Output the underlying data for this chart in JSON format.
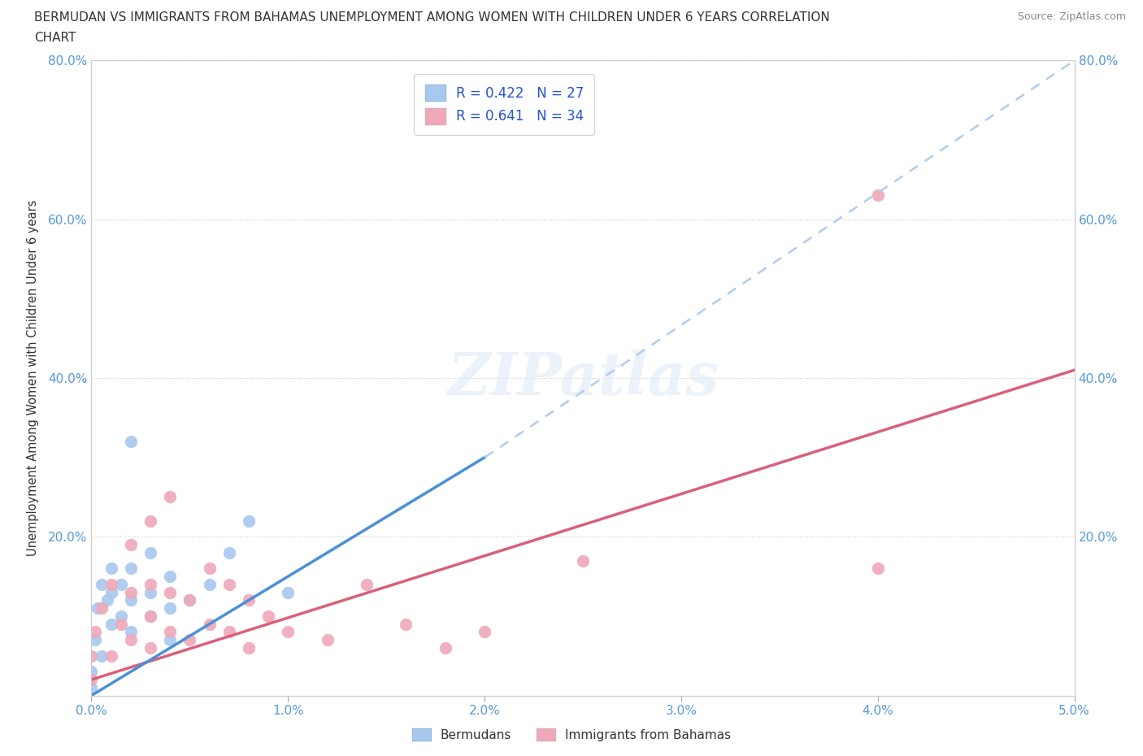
{
  "title_line1": "BERMUDAN VS IMMIGRANTS FROM BAHAMAS UNEMPLOYMENT AMONG WOMEN WITH CHILDREN UNDER 6 YEARS CORRELATION",
  "title_line2": "CHART",
  "source": "Source: ZipAtlas.com",
  "ylabel": "Unemployment Among Women with Children Under 6 years",
  "xlim": [
    0.0,
    0.05
  ],
  "ylim": [
    0.0,
    0.8
  ],
  "xticks": [
    0.0,
    0.01,
    0.02,
    0.03,
    0.04,
    0.05
  ],
  "yticks": [
    0.0,
    0.2,
    0.4,
    0.6,
    0.8
  ],
  "xticklabels": [
    "0.0%",
    "1.0%",
    "2.0%",
    "3.0%",
    "4.0%",
    "5.0%"
  ],
  "yticklabels": [
    "",
    "20.0%",
    "40.0%",
    "60.0%",
    "80.0%"
  ],
  "legend1_R": "0.422",
  "legend1_N": "27",
  "legend2_R": "0.641",
  "legend2_N": "34",
  "bermudans_color": "#a8c8f0",
  "bahamas_color": "#f0a8b8",
  "trendline_blue": "#4a90d9",
  "trendline_pink": "#d9607a",
  "dashed_color": "#b0ccee",
  "watermark_text": "ZIPatlas",
  "blue_line_x": [
    0.0,
    0.02
  ],
  "blue_line_y": [
    0.0,
    0.3
  ],
  "dash_line_x": [
    0.02,
    0.05
  ],
  "dash_line_y": [
    0.3,
    0.8
  ],
  "pink_line_x": [
    0.0,
    0.05
  ],
  "pink_line_y": [
    0.02,
    0.41
  ],
  "bermudans_x": [
    0.0,
    0.0002,
    0.0003,
    0.0005,
    0.0005,
    0.0008,
    0.001,
    0.001,
    0.001,
    0.0015,
    0.0015,
    0.002,
    0.002,
    0.002,
    0.002,
    0.003,
    0.003,
    0.003,
    0.004,
    0.004,
    0.004,
    0.005,
    0.006,
    0.007,
    0.008,
    0.01,
    0.0
  ],
  "bermudans_y": [
    0.03,
    0.07,
    0.11,
    0.14,
    0.05,
    0.12,
    0.09,
    0.13,
    0.16,
    0.1,
    0.14,
    0.08,
    0.12,
    0.16,
    0.32,
    0.1,
    0.13,
    0.18,
    0.07,
    0.11,
    0.15,
    0.12,
    0.14,
    0.18,
    0.22,
    0.13,
    0.01
  ],
  "bahamas_x": [
    0.0,
    0.0,
    0.0002,
    0.0005,
    0.001,
    0.001,
    0.0015,
    0.002,
    0.002,
    0.002,
    0.003,
    0.003,
    0.003,
    0.003,
    0.004,
    0.004,
    0.004,
    0.005,
    0.005,
    0.006,
    0.006,
    0.007,
    0.007,
    0.008,
    0.008,
    0.009,
    0.01,
    0.012,
    0.014,
    0.016,
    0.018,
    0.02,
    0.025,
    0.04
  ],
  "bahamas_y": [
    0.02,
    0.05,
    0.08,
    0.11,
    0.05,
    0.14,
    0.09,
    0.07,
    0.13,
    0.19,
    0.06,
    0.1,
    0.14,
    0.22,
    0.08,
    0.13,
    0.25,
    0.07,
    0.12,
    0.09,
    0.16,
    0.08,
    0.14,
    0.06,
    0.12,
    0.1,
    0.08,
    0.07,
    0.14,
    0.09,
    0.06,
    0.08,
    0.17,
    0.16
  ]
}
